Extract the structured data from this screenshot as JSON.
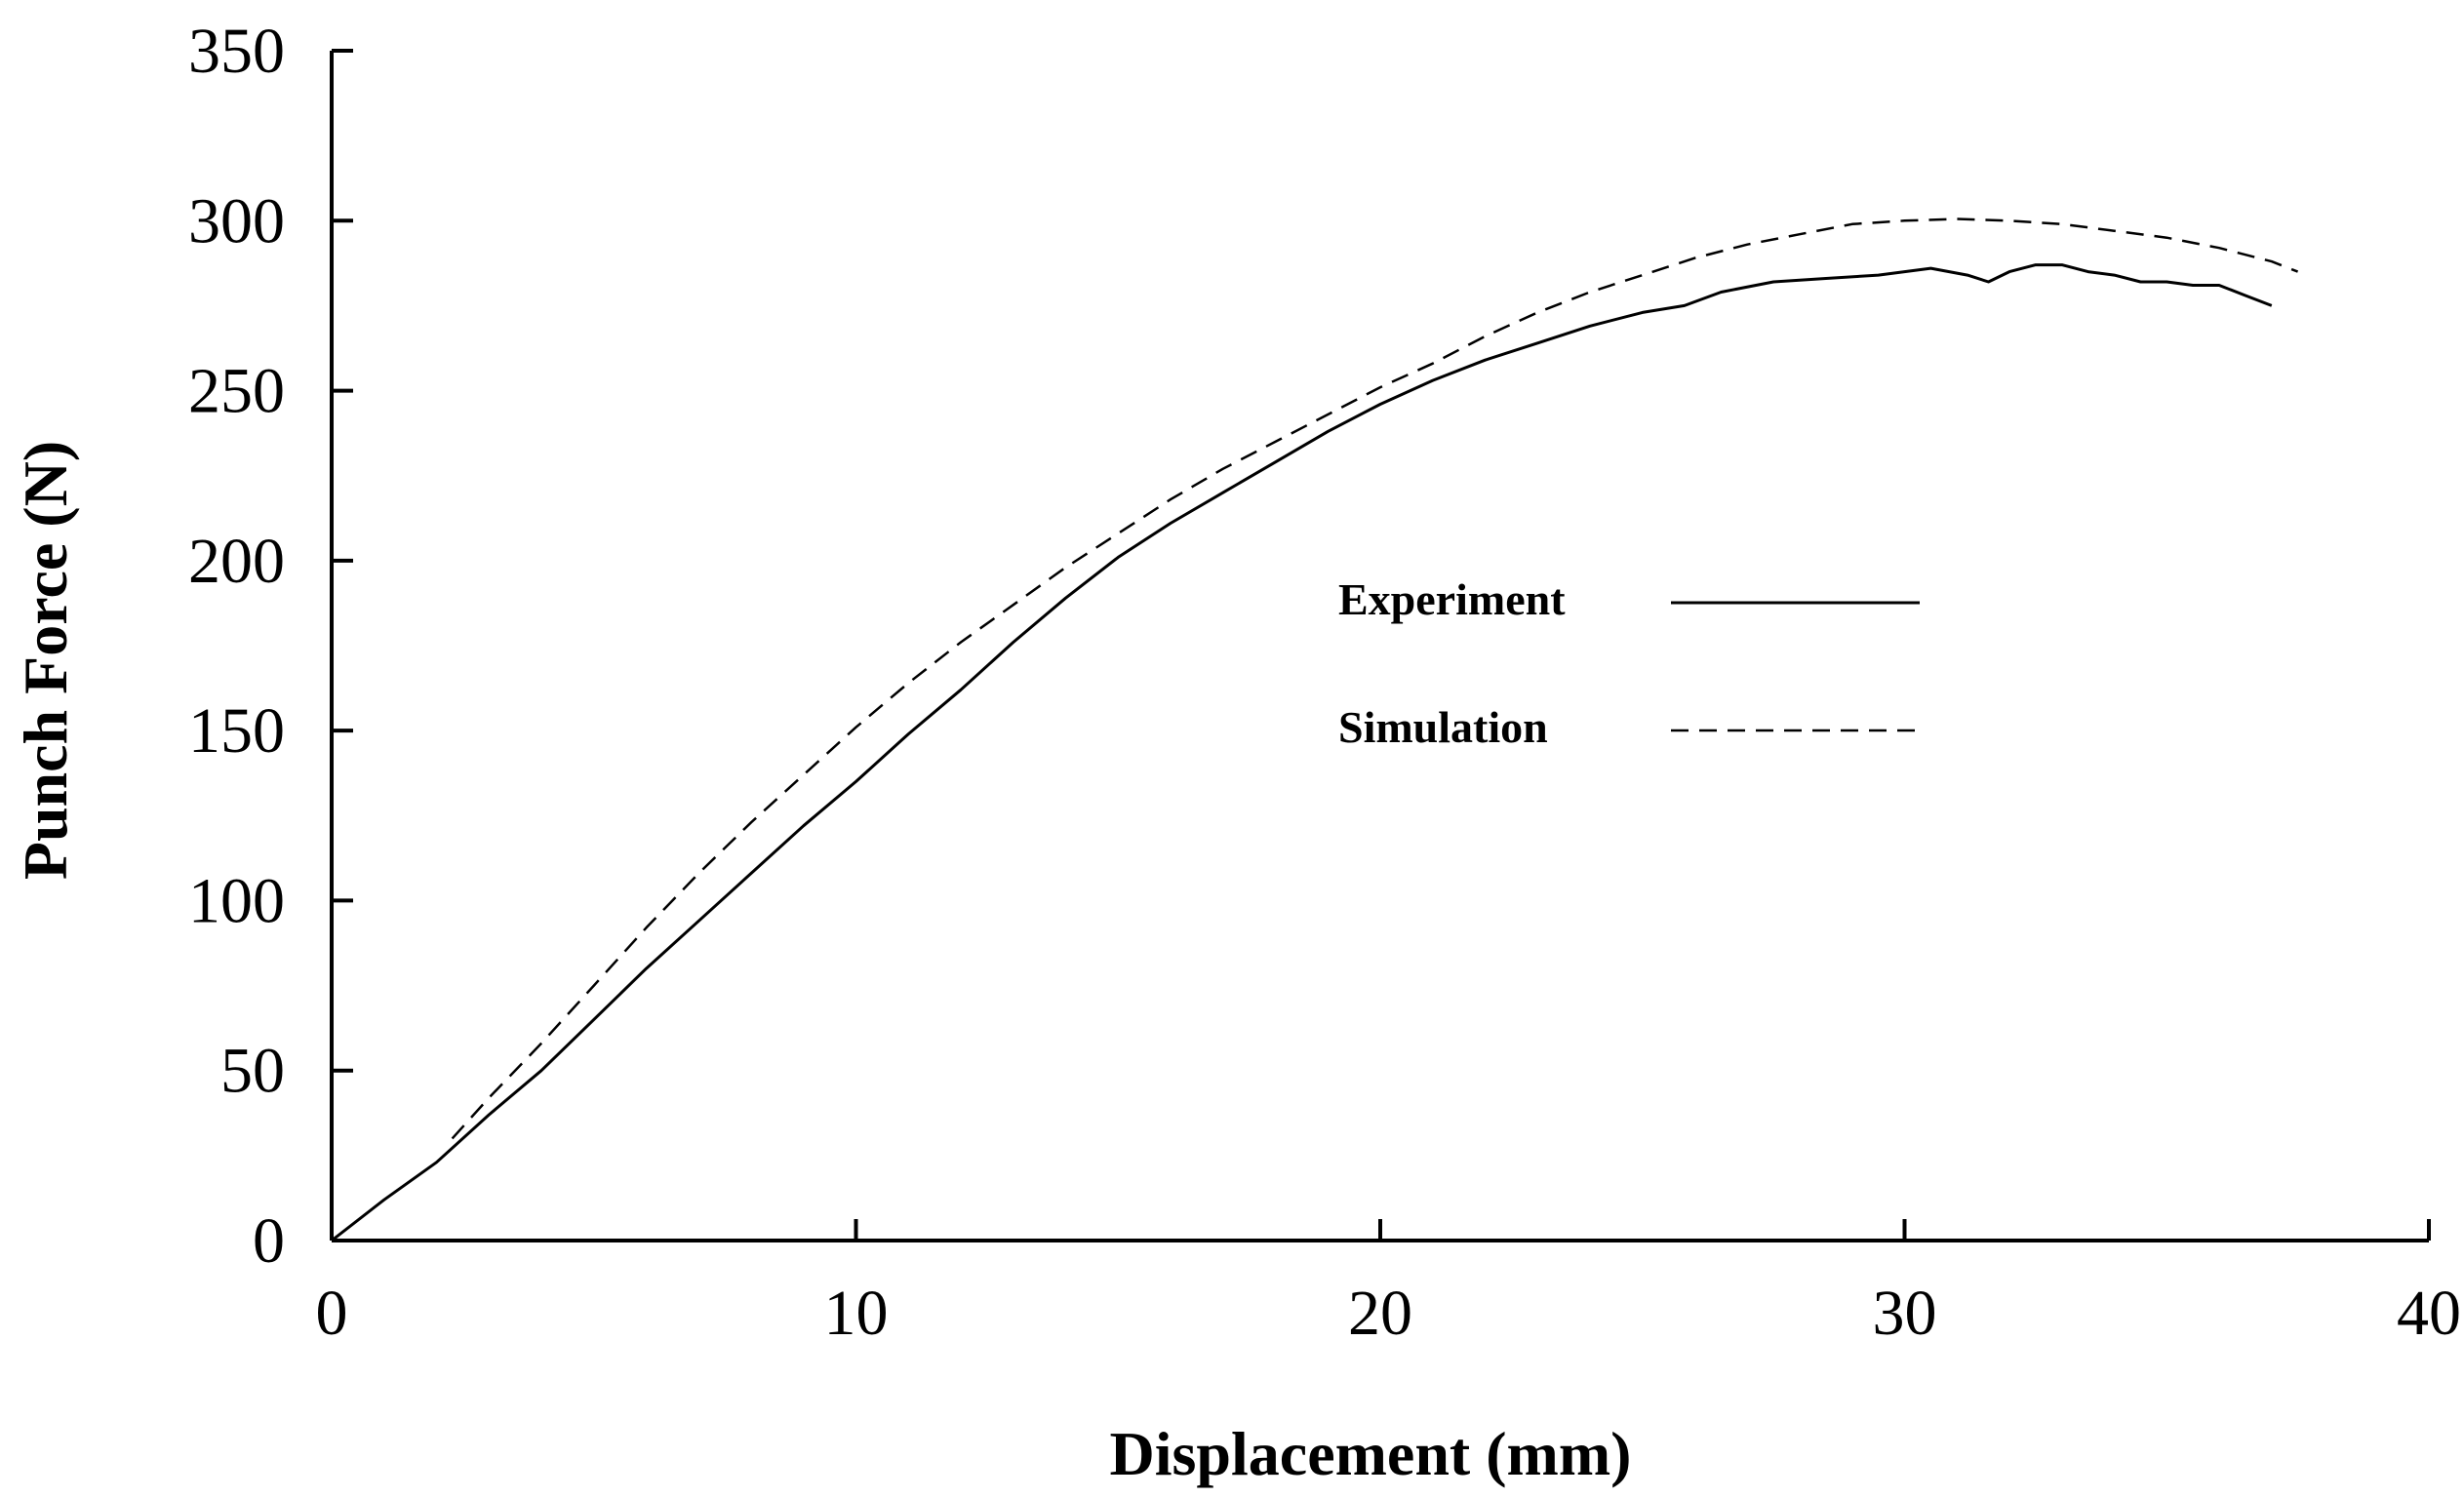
{
  "chart_data": {
    "type": "line",
    "title": "",
    "xlabel": "Displacement (mm)",
    "ylabel": "Punch Force (N)",
    "xlim": [
      0,
      40
    ],
    "ylim": [
      0,
      350
    ],
    "xticks": [
      0,
      10,
      20,
      30,
      40
    ],
    "yticks": [
      0,
      50,
      100,
      150,
      200,
      250,
      300,
      350
    ],
    "grid": false,
    "legend_position": "center-right",
    "series": [
      {
        "name": "Experiment",
        "style": "solid",
        "color": "#000000",
        "x": [
          0,
          1,
          2,
          3,
          4,
          5,
          6,
          7,
          8,
          9,
          10,
          11,
          12,
          13,
          14,
          15,
          16,
          17,
          18,
          19,
          20,
          21,
          22,
          23,
          24,
          25,
          25.8,
          26.5,
          27.5,
          28.5,
          29.5,
          30.5,
          31.2,
          31.6,
          32,
          32.5,
          33,
          33.5,
          34,
          34.5,
          35,
          35.5,
          36,
          36.5,
          37
        ],
        "y": [
          0,
          12,
          23,
          37,
          50,
          65,
          80,
          94,
          108,
          122,
          135,
          149,
          162,
          176,
          189,
          201,
          211,
          220,
          229,
          238,
          246,
          253,
          259,
          264,
          269,
          273,
          275,
          279,
          282,
          283,
          284,
          286,
          284,
          282,
          285,
          287,
          287,
          285,
          284,
          282,
          282,
          281,
          281,
          278,
          275
        ]
      },
      {
        "name": "Simulation",
        "style": "dashed",
        "color": "#000000",
        "x": [
          2.3,
          3,
          4,
          5,
          6,
          7,
          8,
          9,
          10,
          11,
          12,
          13,
          14,
          15,
          16,
          17,
          18,
          19,
          20,
          21,
          22,
          23,
          24,
          25,
          26,
          27,
          28,
          29,
          30,
          31,
          32,
          33,
          34,
          35,
          36,
          37,
          37.5
        ],
        "y": [
          30,
          42,
          58,
          75,
          92,
          108,
          123,
          137,
          151,
          164,
          176,
          187,
          198,
          208,
          218,
          227,
          235,
          243,
          251,
          258,
          266,
          273,
          279,
          284,
          289,
          293,
          296,
          299,
          300,
          300.5,
          300,
          299,
          297,
          295,
          292,
          288,
          285
        ]
      }
    ]
  }
}
